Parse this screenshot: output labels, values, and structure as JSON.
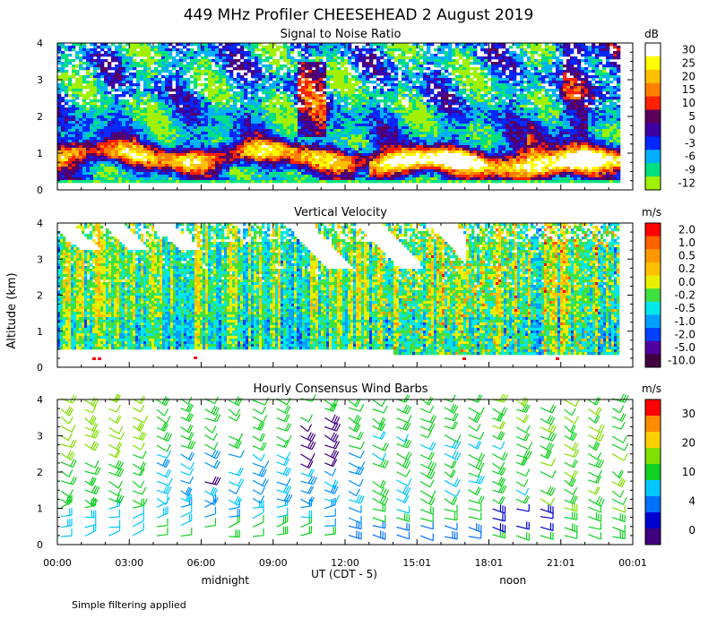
{
  "title": "449 MHz Profiler CHEESEHEAD  2 August 2019",
  "ylabel": "Altitude (km)",
  "xlabel": "UT  (CDT - 5)",
  "footnote": "Simple filtering applied",
  "x_ticks": [
    "00:00",
    "03:00",
    "06:00",
    "09:00",
    "12:00",
    "15:01",
    "18:01",
    "21:01",
    "00:01"
  ],
  "time_markers": [
    {
      "label": "midnight",
      "hour": 7
    },
    {
      "label": "noon",
      "hour": 19
    }
  ],
  "chart_data": [
    {
      "id": "snr",
      "type": "heatmap",
      "title": "Signal to Noise Ratio",
      "unit": "dB",
      "xlim": [
        0,
        24
      ],
      "ylim": [
        0,
        4
      ],
      "y_ticks": [
        "0",
        "1",
        "2",
        "3",
        "4"
      ],
      "colorbar": {
        "labels": [
          "30",
          "25",
          "20",
          "15",
          "10",
          "5",
          "0",
          "-3",
          "-6",
          "-9",
          "-12"
        ],
        "colors": [
          "#ffffff",
          "#ffff00",
          "#ffc000",
          "#ff8000",
          "#ff2000",
          "#5a005a",
          "#3c00a0",
          "#0028ff",
          "#00b0ff",
          "#00e080",
          "#a0f000"
        ]
      }
    },
    {
      "id": "vv",
      "type": "heatmap",
      "title": "Vertical Velocity",
      "unit": "m/s",
      "xlim": [
        0,
        24
      ],
      "ylim": [
        0,
        4
      ],
      "y_ticks": [
        "0",
        "1",
        "2",
        "3",
        "4"
      ],
      "colorbar": {
        "labels": [
          "2.0",
          "1.0",
          "0.5",
          "0.2",
          "0.0",
          "-0.2",
          "-0.5",
          "-1.0",
          "-2.0",
          "-5.0",
          "-10.0"
        ],
        "colors": [
          "#ff0000",
          "#ff6000",
          "#ff9800",
          "#ffc000",
          "#e8f000",
          "#40e040",
          "#00e8e8",
          "#00a0ff",
          "#0040ff",
          "#5000a0",
          "#400040"
        ]
      }
    },
    {
      "id": "wind",
      "type": "scatter",
      "title": "Hourly Consensus Wind Barbs",
      "unit": "m/s",
      "xlim": [
        0,
        24
      ],
      "ylim": [
        0,
        4
      ],
      "y_ticks": [
        "0",
        "1",
        "2",
        "3",
        "4"
      ],
      "colorbar": {
        "labels": [
          "30",
          "20",
          "10",
          "4",
          "0"
        ],
        "colors": [
          "#ff0000",
          "#ff8c00",
          "#ffd000",
          "#80e000",
          "#10d020",
          "#00c8ff",
          "#0070ff",
          "#0000d0",
          "#400080"
        ]
      }
    }
  ]
}
